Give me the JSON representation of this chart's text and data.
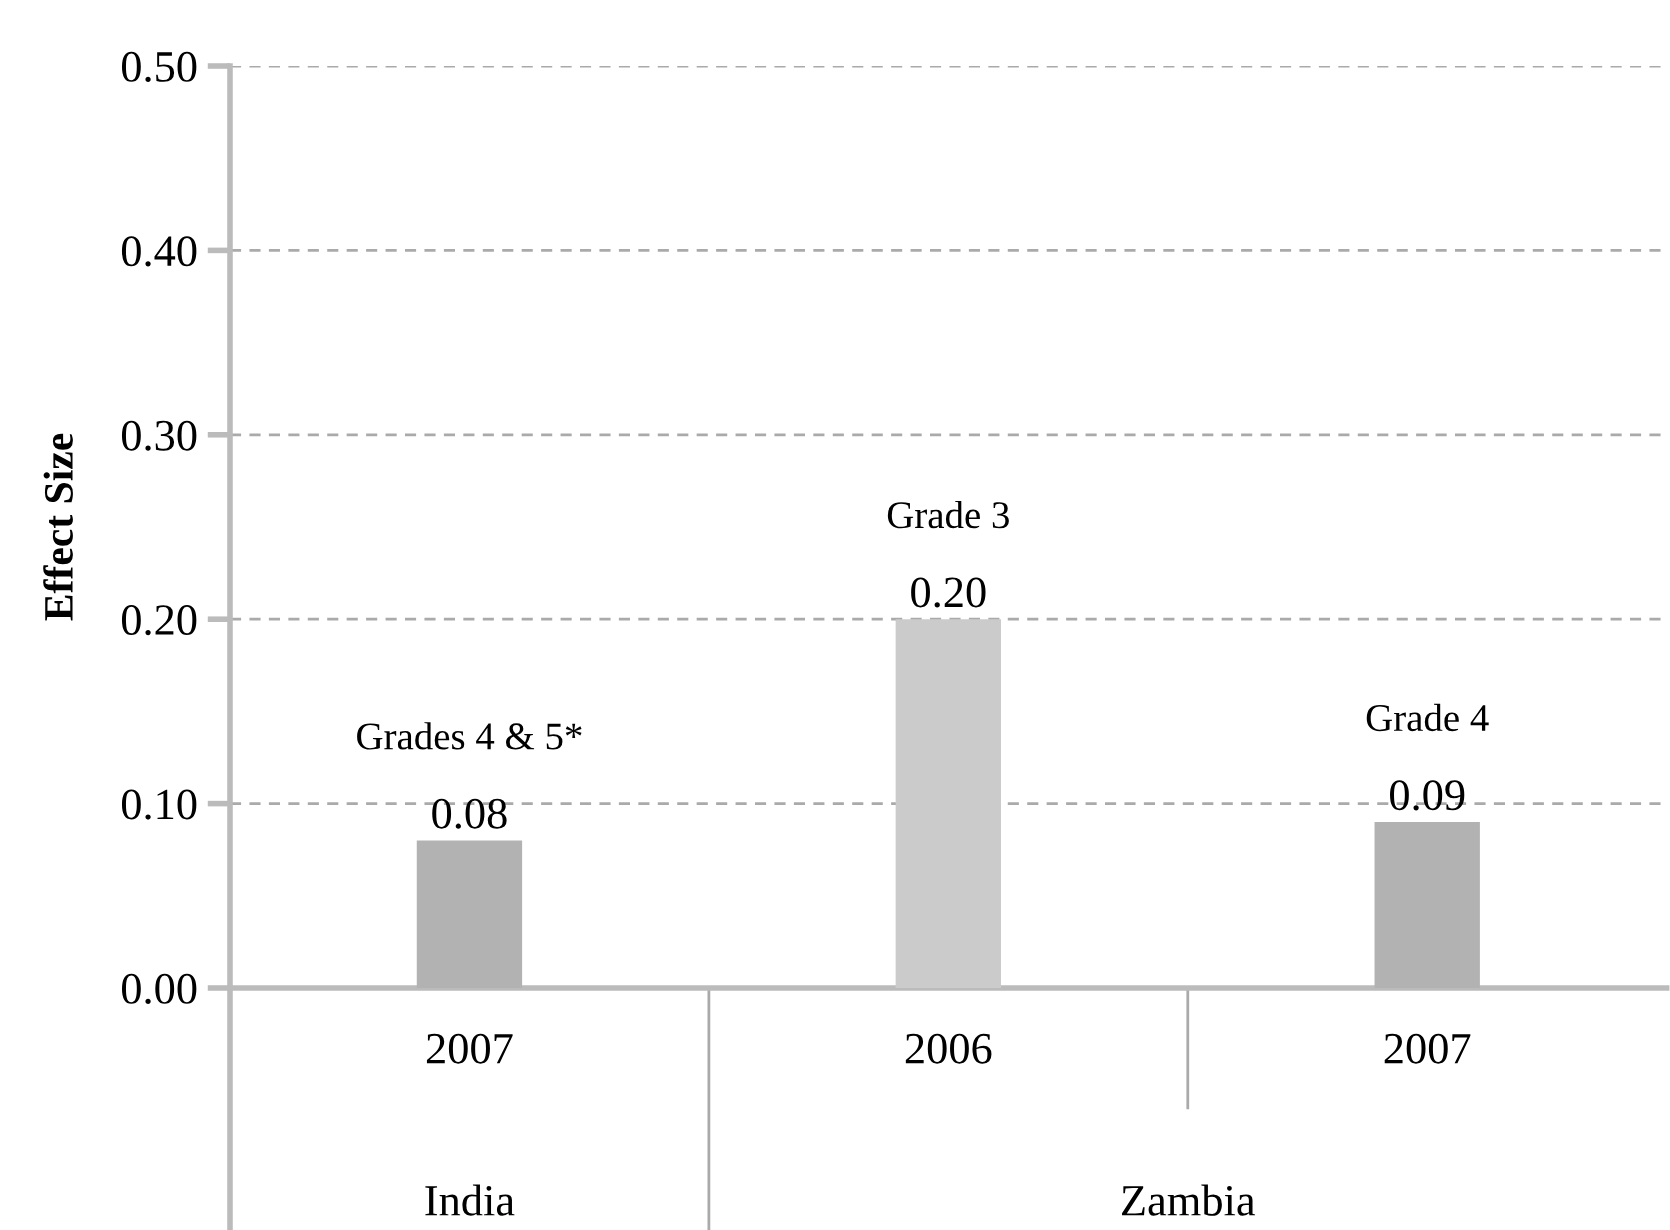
{
  "chart_data": {
    "type": "bar",
    "ylabel": "Effect Size",
    "categories": [
      "2007",
      "2006",
      "2007"
    ],
    "values": [
      0.08,
      0.2,
      0.09
    ],
    "colors": [
      "#b2b2b2",
      "#cbcbcb",
      "#b2b2b2"
    ],
    "value_labels": [
      "0.08",
      "0.20",
      "0.09"
    ],
    "ylim": [
      0,
      0.5
    ],
    "yticks": [
      {
        "value": 0,
        "label": "0.00"
      },
      {
        "value": 0.1,
        "label": "0.10"
      },
      {
        "value": 0.2,
        "label": "0.20"
      },
      {
        "value": 0.3,
        "label": "0.30"
      },
      {
        "value": 0.4,
        "label": "0.40"
      },
      {
        "value": 0.5,
        "label": "0.50"
      }
    ],
    "grid": "y",
    "annotations": [
      "Grades 4 & 5*",
      "Grade 3",
      "Grade 4",
      "India",
      "Zambia"
    ]
  }
}
